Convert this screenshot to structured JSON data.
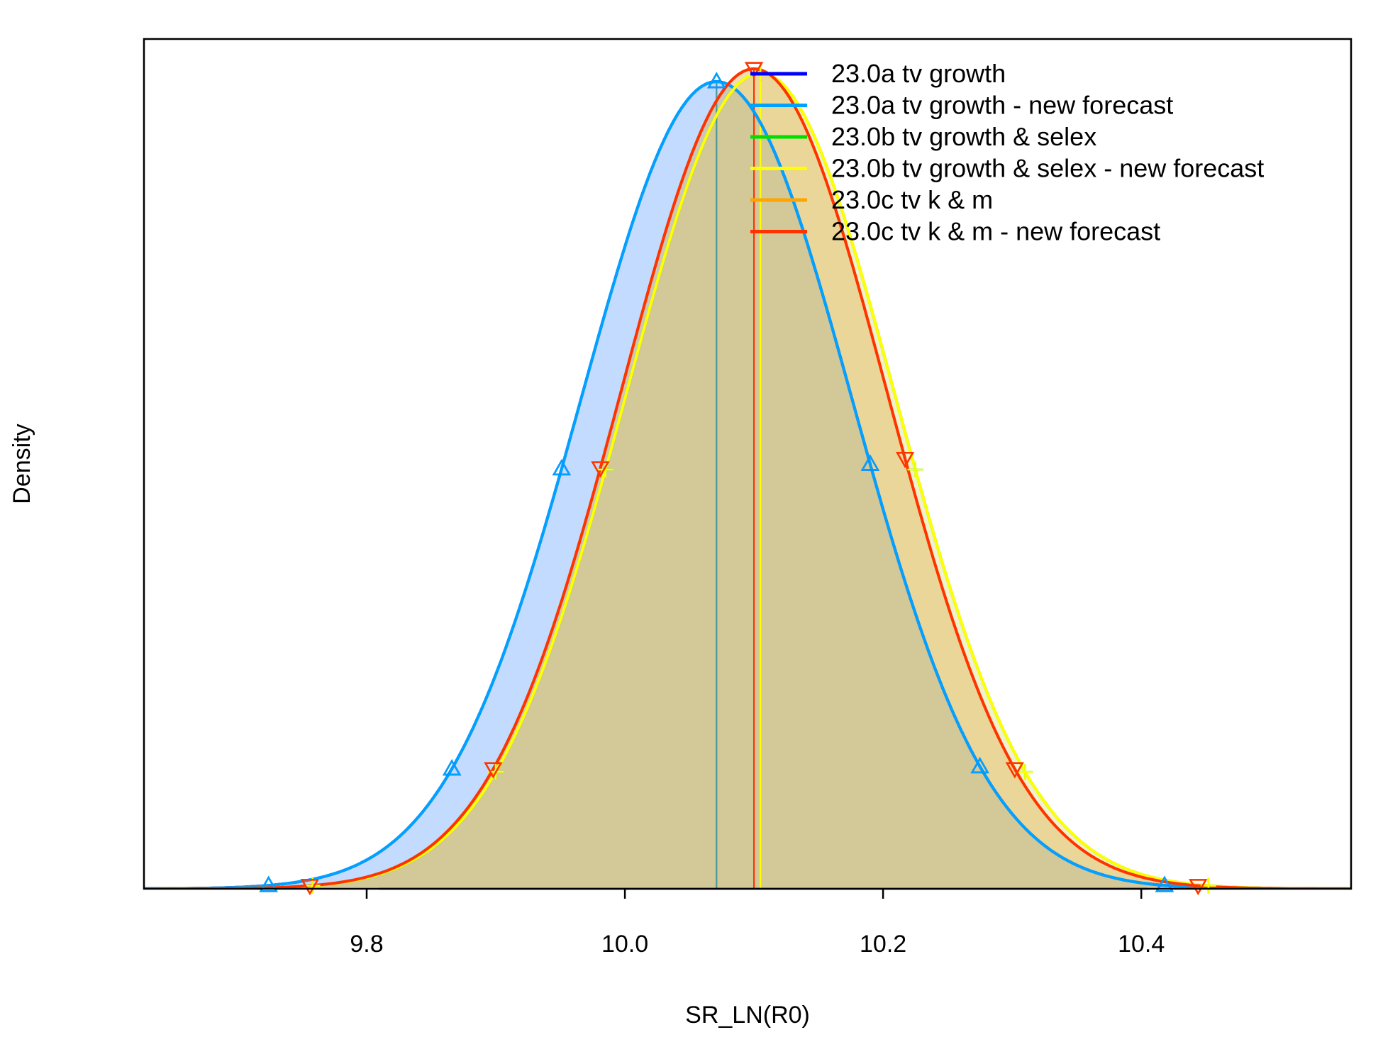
{
  "chart_data": {
    "type": "line",
    "xlabel": "SR_LN(R0)",
    "ylabel": "Density",
    "xlim": [
      9.6275,
      10.5625
    ],
    "x_ticks": [
      9.8,
      10.0,
      10.2,
      10.4
    ],
    "x_tick_labels": [
      "9.8",
      "10.0",
      "10.2",
      "10.4"
    ],
    "y_ticks_shown": false,
    "grid": false,
    "legend_position": "top-right",
    "series": [
      {
        "name": "23.0a tv growth",
        "color": "#0000ff",
        "fill": "#3f7fff",
        "marker": "triangle-up",
        "mean": 10.071,
        "sd": 0.105,
        "peak_density": 3.8,
        "ci95": [
          9.724,
          10.418
        ],
        "marked_x": [
          9.724,
          9.866,
          9.951,
          10.071,
          10.19,
          10.275,
          10.418
        ],
        "mean_line_color": "#4d9999"
      },
      {
        "name": "23.0a tv growth - new forecast",
        "color": "#00a2ff",
        "fill": "#7fbfff",
        "marker": "triangle-up",
        "mean": 10.071,
        "sd": 0.105,
        "peak_density": 3.8,
        "ci95": [
          9.724,
          10.418
        ],
        "marked_x": [
          9.724,
          9.866,
          9.951,
          10.071,
          10.19,
          10.275,
          10.418
        ],
        "mean_line_color": "#4d9999"
      },
      {
        "name": "23.0b tv growth & selex",
        "color": "#00e000",
        "fill": "#bfe07f",
        "marker": "plus",
        "mean": 10.105,
        "sd": 0.104,
        "peak_density": 3.84,
        "ci95": [
          9.758,
          10.452
        ],
        "marked_x": [
          9.758,
          9.9,
          9.985,
          10.105,
          10.225,
          10.31,
          10.452
        ],
        "mean_line_color": "#ffff00"
      },
      {
        "name": "23.0b tv growth & selex - new forecast",
        "color": "#ffff00",
        "fill": "#f2e17f",
        "marker": "plus",
        "mean": 10.105,
        "sd": 0.104,
        "peak_density": 3.84,
        "ci95": [
          9.758,
          10.452
        ],
        "marked_x": [
          9.758,
          9.9,
          9.985,
          10.105,
          10.225,
          10.31,
          10.452
        ],
        "mean_line_color": "#ffff00"
      },
      {
        "name": "23.0c tv k & m",
        "color": "#ffa500",
        "fill": "#e6b84d",
        "marker": "triangle-down",
        "mean": 10.1,
        "sd": 0.103,
        "peak_density": 3.86,
        "ci95": [
          9.756,
          10.444
        ],
        "marked_x": [
          9.756,
          9.898,
          9.981,
          10.1,
          10.217,
          10.302,
          10.444
        ],
        "mean_line_color": "#ff3300"
      },
      {
        "name": "23.0c tv k & m - new forecast",
        "color": "#ff3300",
        "fill": "#d9a640",
        "marker": "triangle-down",
        "mean": 10.1,
        "sd": 0.103,
        "peak_density": 3.86,
        "ci95": [
          9.756,
          10.444
        ],
        "marked_x": [
          9.756,
          9.898,
          9.981,
          10.1,
          10.217,
          10.302,
          10.444
        ],
        "mean_line_color": "#ff3300"
      }
    ]
  }
}
